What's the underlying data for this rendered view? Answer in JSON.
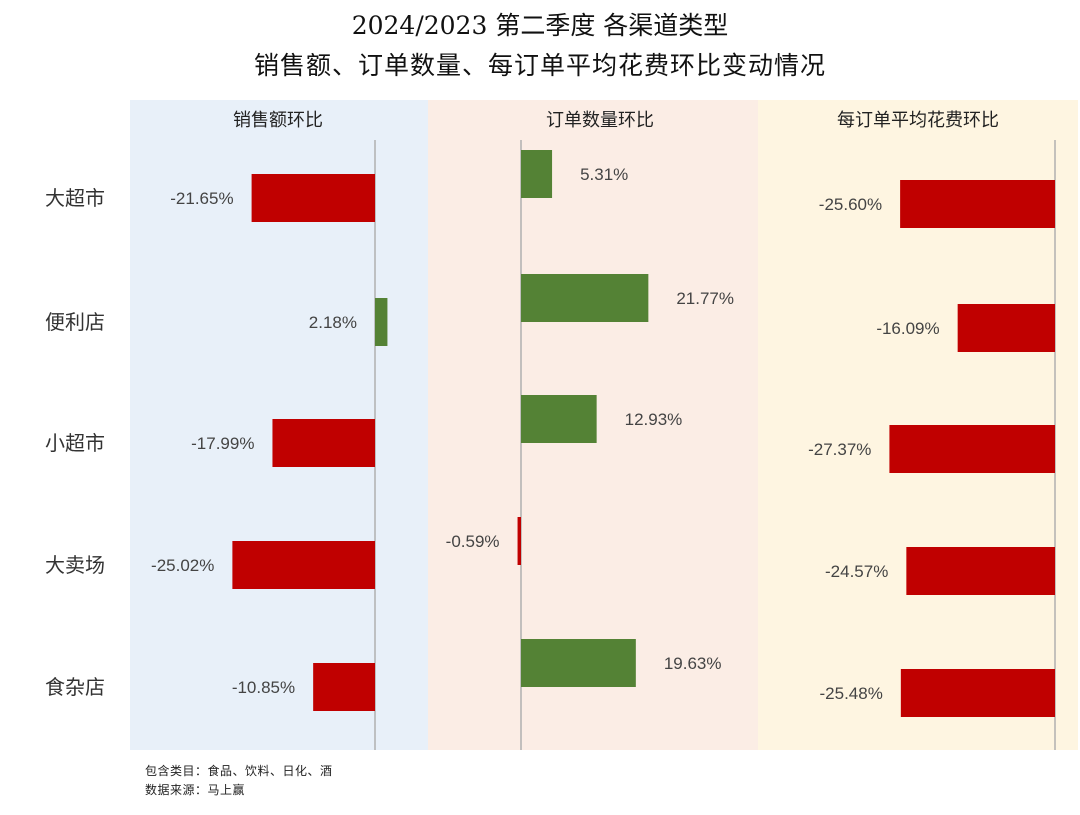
{
  "title_line1": "2024/2023 第二季度 各渠道类型",
  "title_line2": "销售额、订单数量、每订单平均花费环比变动情况",
  "footnote_categories": "包含类目：食品、饮料、日化、酒",
  "footnote_source": "数据来源：马上赢",
  "colors": {
    "negative": "#C00000",
    "positive": "#548235",
    "panel_bg": [
      "#E8F0F9",
      "#FBEDE5",
      "#FEF5E1"
    ],
    "axis": "#B0B0B0"
  },
  "chart_data": {
    "type": "bar",
    "orientation": "horizontal",
    "categories": [
      "大超市",
      "便利店",
      "小超市",
      "大卖场",
      "食杂店"
    ],
    "series": [
      {
        "name": "销售额环比",
        "values": [
          -21.65,
          2.18,
          -17.99,
          -25.02,
          -10.85
        ]
      },
      {
        "name": "订单数量环比",
        "values": [
          5.31,
          21.77,
          12.93,
          -0.59,
          19.63
        ]
      },
      {
        "name": "每订单平均花费环比",
        "values": [
          -25.6,
          -16.09,
          -27.37,
          -24.57,
          -25.48
        ]
      }
    ],
    "value_labels": [
      [
        "-21.65%",
        "2.18%",
        "-17.99%",
        "-25.02%",
        "-10.85%"
      ],
      [
        "5.31%",
        "21.77%",
        "12.93%",
        "-0.59%",
        "19.63%"
      ],
      [
        "-25.60%",
        "-16.09%",
        "-27.37%",
        "-24.57%",
        "-25.48%"
      ]
    ],
    "unit": "%",
    "grid": false
  }
}
